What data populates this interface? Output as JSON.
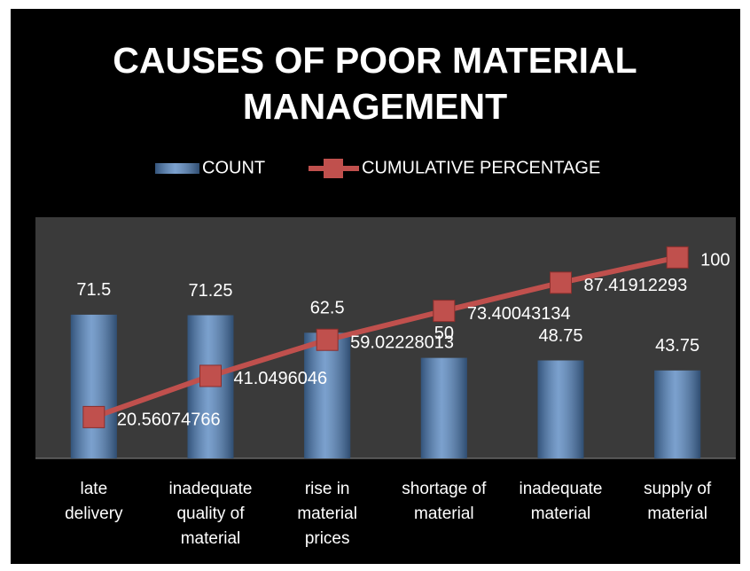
{
  "chart_data": {
    "type": "bar-line",
    "title": "CAUSES OF POOR MATERIAL MANAGEMENT",
    "categories": [
      "late delivery",
      "inadequate quality of material",
      "rise in material prices",
      "shortage of material",
      "inadequate material",
      "supply of material"
    ],
    "series": [
      {
        "name": "COUNT",
        "type": "bar",
        "color": "#4f81bd",
        "values": [
          71.5,
          71.25,
          62.5,
          50,
          48.75,
          43.75
        ]
      },
      {
        "name": "CUMULATIVE PERCENTAGE",
        "type": "line",
        "axis": "y2",
        "color": "#c0504d",
        "values": [
          20.56074766,
          41.0496046,
          59.02228013,
          73.40043134,
          87.41912293,
          100
        ]
      }
    ],
    "ylim": [
      0,
      120
    ],
    "y2lim": [
      0,
      120
    ],
    "legend": "top"
  }
}
